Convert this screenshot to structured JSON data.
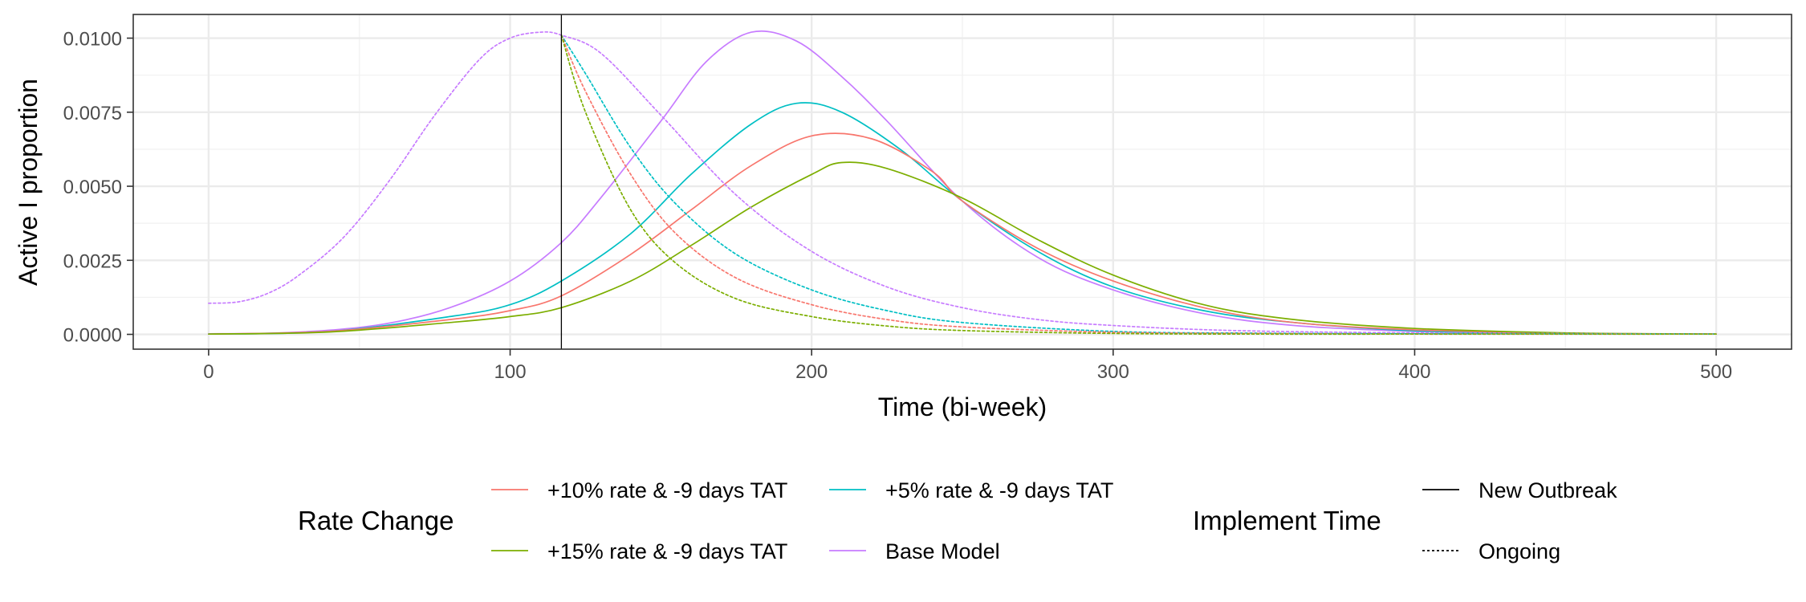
{
  "chart_data": {
    "type": "line",
    "xlabel": "Time (bi-week)",
    "ylabel": "Active I proportion",
    "xlim": [
      -25,
      525
    ],
    "ylim": [
      -0.0005,
      0.0108
    ],
    "x_ticks": [
      0,
      100,
      200,
      300,
      400,
      500
    ],
    "x_tick_labels": [
      "0",
      "100",
      "200",
      "300",
      "400",
      "500"
    ],
    "y_ticks": [
      0,
      0.0025,
      0.005,
      0.0075,
      0.01
    ],
    "y_tick_labels": [
      "0.0000",
      "0.0025",
      "0.0050",
      "0.0075",
      "0.0100"
    ],
    "grid": true,
    "intervention_time": 117,
    "legend_position": "bottom",
    "legend": {
      "color_title": "Rate Change",
      "color_entries": [
        {
          "label": "+10% rate & -9 days TAT",
          "color": "#F8766D"
        },
        {
          "label": "+5% rate & -9 days TAT",
          "color": "#00BFC4"
        },
        {
          "label": "+15% rate & -9 days TAT",
          "color": "#7CAE00"
        },
        {
          "label": "Base Model",
          "color": "#C77CFF"
        }
      ],
      "linetype_title": "Implement Time",
      "linetype_entries": [
        {
          "label": "New Outbreak",
          "linetype": "solid"
        },
        {
          "label": "Ongoing",
          "linetype": "dotted"
        }
      ]
    },
    "series": [
      {
        "color": "#C77CFF",
        "linetype": "solid",
        "x": [
          0,
          20,
          40,
          60,
          80,
          100,
          117,
          130,
          150,
          165,
          180,
          195,
          210,
          225,
          250,
          275,
          300,
          330,
          360,
          400,
          450,
          500
        ],
        "y": [
          2e-05,
          4e-05,
          0.00014,
          0.00038,
          0.0009,
          0.0018,
          0.0031,
          0.0046,
          0.0072,
          0.0092,
          0.0102,
          0.0099,
          0.0087,
          0.0072,
          0.0045,
          0.0026,
          0.0015,
          0.0007,
          0.0003,
          0.0001,
          2e-05,
          1e-05
        ]
      },
      {
        "color": "#00BFC4",
        "linetype": "solid",
        "x": [
          0,
          40,
          80,
          100,
          117,
          140,
          160,
          180,
          195,
          210,
          230,
          250,
          275,
          300,
          330,
          360,
          400,
          450,
          500
        ],
        "y": [
          1e-05,
          0.0001,
          0.0006,
          0.001,
          0.0018,
          0.0034,
          0.0054,
          0.0071,
          0.0078,
          0.0075,
          0.0062,
          0.0045,
          0.0028,
          0.0016,
          0.0008,
          0.0004,
          0.00012,
          3e-05,
          1e-05
        ]
      },
      {
        "color": "#F8766D",
        "linetype": "solid",
        "x": [
          0,
          40,
          80,
          100,
          117,
          140,
          160,
          180,
          200,
          220,
          240,
          250,
          275,
          300,
          330,
          360,
          400,
          450,
          500
        ],
        "y": [
          1e-05,
          0.0001,
          0.0005,
          0.0008,
          0.0013,
          0.0027,
          0.0042,
          0.0057,
          0.0067,
          0.0066,
          0.0055,
          0.0045,
          0.0029,
          0.0018,
          0.0009,
          0.0004,
          0.00015,
          4e-05,
          1e-05
        ]
      },
      {
        "color": "#7CAE00",
        "linetype": "solid",
        "x": [
          0,
          40,
          80,
          100,
          117,
          140,
          160,
          180,
          200,
          210,
          225,
          250,
          275,
          300,
          330,
          360,
          400,
          450,
          500
        ],
        "y": [
          1e-05,
          8e-05,
          0.0004,
          0.0006,
          0.0009,
          0.0018,
          0.003,
          0.0043,
          0.0054,
          0.0058,
          0.0056,
          0.0046,
          0.0032,
          0.002,
          0.001,
          0.0005,
          0.0002,
          5e-05,
          1e-05
        ]
      },
      {
        "color": "#C77CFF",
        "linetype": "dotted",
        "x": [
          0,
          10,
          20,
          30,
          45,
          60,
          75,
          90,
          100,
          110,
          117,
          130,
          150,
          175,
          200,
          225,
          250,
          275,
          300,
          340,
          400,
          500
        ],
        "y": [
          0.00105,
          0.0011,
          0.0014,
          0.002,
          0.0033,
          0.0052,
          0.0074,
          0.0093,
          0.01,
          0.0102,
          0.0101,
          0.0095,
          0.0074,
          0.0047,
          0.0028,
          0.0016,
          0.0009,
          0.0005,
          0.0003,
          0.00013,
          5e-05,
          1e-05
        ]
      },
      {
        "color": "#00BFC4",
        "linetype": "dotted",
        "x": [
          117,
          125,
          140,
          155,
          175,
          200,
          225,
          250,
          300,
          350,
          400,
          500
        ],
        "y": [
          0.0101,
          0.0088,
          0.0063,
          0.0044,
          0.0027,
          0.0015,
          0.0008,
          0.0004,
          0.0001,
          4e-05,
          2e-05,
          1e-05
        ]
      },
      {
        "color": "#F8766D",
        "linetype": "dotted",
        "x": [
          117,
          125,
          140,
          155,
          175,
          200,
          225,
          250,
          300,
          350,
          400,
          500
        ],
        "y": [
          0.0101,
          0.0082,
          0.0054,
          0.0034,
          0.0019,
          0.001,
          0.0005,
          0.00025,
          7e-05,
          3e-05,
          1e-05,
          1e-05
        ]
      },
      {
        "color": "#7CAE00",
        "linetype": "dotted",
        "x": [
          117,
          125,
          140,
          155,
          175,
          200,
          225,
          250,
          300,
          350,
          400,
          500
        ],
        "y": [
          0.0101,
          0.0075,
          0.0042,
          0.0024,
          0.0012,
          0.0006,
          0.00028,
          0.00013,
          3e-05,
          1e-05,
          1e-05,
          1e-05
        ]
      }
    ]
  }
}
